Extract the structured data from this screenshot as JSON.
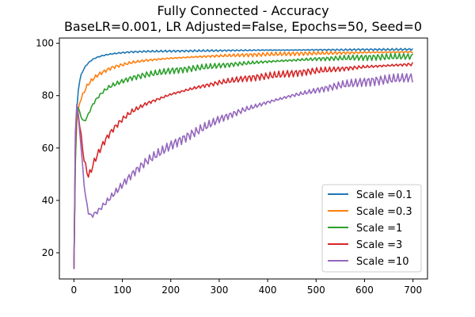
{
  "chart_data": {
    "type": "line",
    "title": "Fully Connected - Accuracy",
    "subtitle": "BaseLR=0.001, LR Adjusted=False, Epochs=50, Seed=0",
    "xlabel": "",
    "ylabel": "",
    "xlim": [
      -30,
      730
    ],
    "ylim": [
      10,
      102
    ],
    "xticks": [
      0,
      100,
      200,
      300,
      400,
      500,
      600,
      700
    ],
    "yticks": [
      20,
      40,
      60,
      80,
      100
    ],
    "grid": false,
    "legend": "lower-right",
    "x": [
      0,
      2,
      5,
      8,
      10,
      15,
      20,
      25,
      30,
      35,
      40,
      50,
      60,
      70,
      80,
      100,
      120,
      150,
      200,
      250,
      300,
      350,
      400,
      450,
      500,
      550,
      600,
      650,
      700
    ],
    "series": [
      {
        "name": "Scale =0.1",
        "color": "#1f77b4",
        "values": [
          14,
          55,
          72,
          80,
          84,
          88,
          90,
          91.5,
          92.5,
          93.3,
          94,
          94.8,
          95.3,
          95.7,
          96,
          96.4,
          96.7,
          96.9,
          97,
          97.1,
          97.2,
          97.3,
          97.4,
          97.4,
          97.5,
          97.5,
          97.6,
          97.6,
          97.7
        ]
      },
      {
        "name": "Scale =0.3",
        "color": "#ff7f0e",
        "values": [
          14,
          50,
          68,
          74,
          76,
          79,
          81,
          83,
          84.5,
          85.5,
          86.5,
          88,
          89,
          90,
          90.8,
          91.8,
          92.7,
          93.5,
          94.3,
          94.8,
          95.2,
          95.5,
          95.8,
          96,
          96.2,
          96.3,
          96.5,
          96.6,
          96.7
        ]
      },
      {
        "name": "Scale =1",
        "color": "#2ca02c",
        "values": [
          14,
          45,
          72,
          76,
          75,
          72,
          70,
          71,
          73,
          75,
          77,
          79.5,
          81.5,
          83,
          84,
          85.5,
          86.8,
          88,
          89.5,
          90.5,
          91.5,
          92.3,
          93,
          93.5,
          94,
          94.3,
          94.6,
          94.8,
          95
        ]
      },
      {
        "name": "Scale =3",
        "color": "#d62728",
        "values": [
          14,
          52,
          77,
          75,
          71,
          64,
          57,
          52,
          49.5,
          51,
          54,
          58,
          61.5,
          64.5,
          67,
          71,
          74,
          77,
          80.5,
          83,
          85,
          86.5,
          87.5,
          88.5,
          89.5,
          90.2,
          91,
          91.5,
          92
        ]
      },
      {
        "name": "Scale =10",
        "color": "#9467bd",
        "values": [
          14,
          60,
          78,
          74,
          70,
          60,
          48,
          40,
          35.5,
          34,
          34.5,
          36,
          38,
          40,
          42,
          46,
          50,
          55,
          61,
          66,
          71,
          74.5,
          77.5,
          80,
          82,
          84,
          85.3,
          86.2,
          87
        ]
      }
    ]
  }
}
